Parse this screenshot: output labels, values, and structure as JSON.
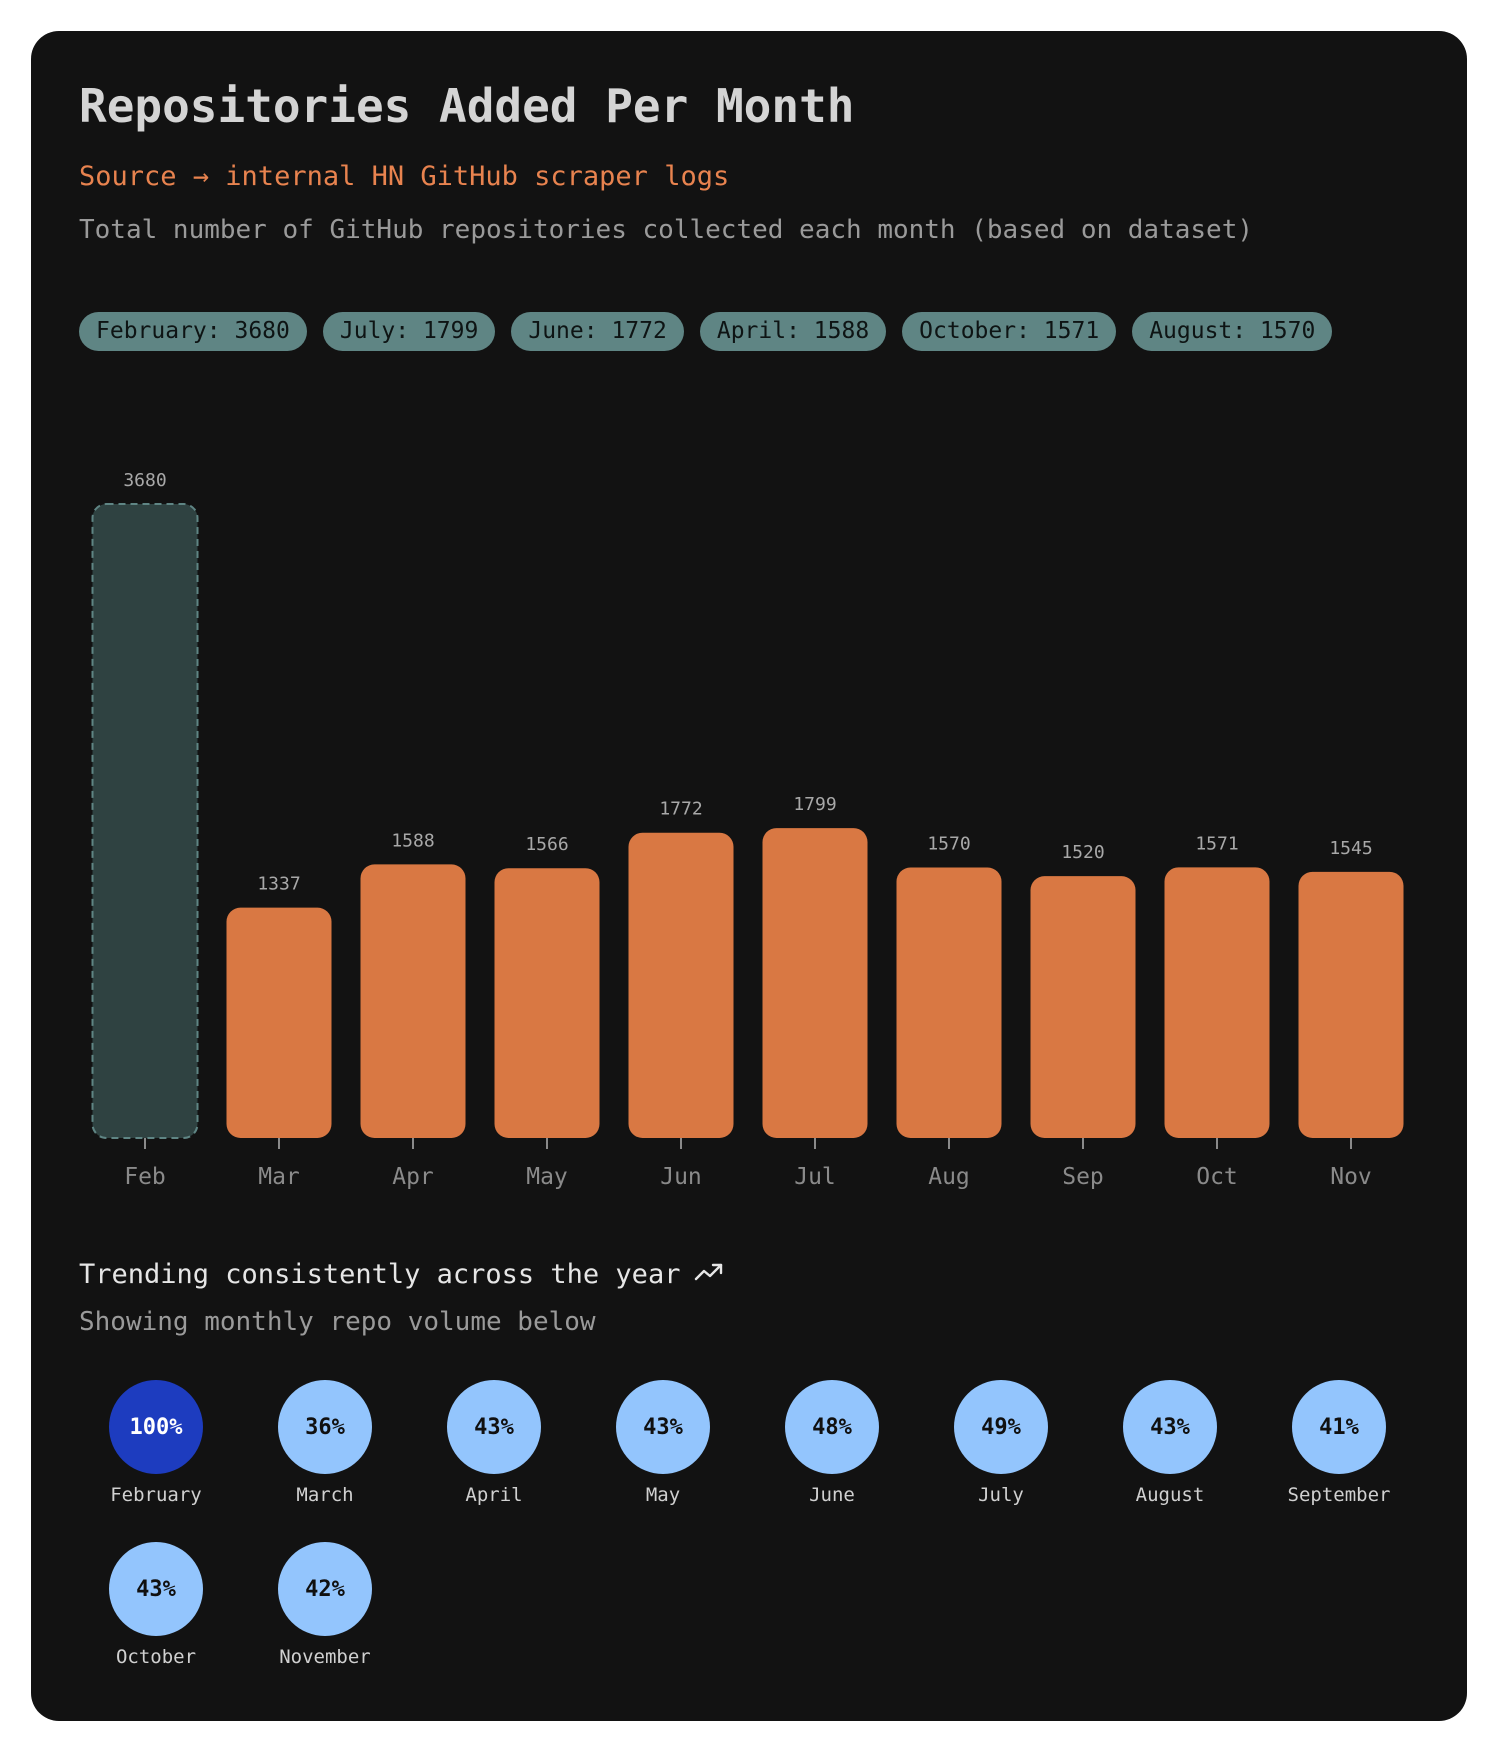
{
  "title": "Repositories Added Per Month",
  "source": "Source → internal HN GitHub scraper logs",
  "description": "Total number of GitHub repositories collected each month (based on dataset)",
  "pills": [
    "February: 3680",
    "July: 1799",
    "June: 1772",
    "April: 1588",
    "October: 1571",
    "August: 1570"
  ],
  "footer": {
    "trend_text": "Trending consistently across the year",
    "trend_icon": "trending-up-icon",
    "subtext": "Showing monthly repo volume below"
  },
  "colors": {
    "bar": "#d97843",
    "highlight_bar": "#2f4241",
    "highlight_border": "#5f8584",
    "top_circle": "#1d3cbf",
    "circle": "#93c5fd"
  },
  "chart_data": {
    "type": "bar",
    "categories": [
      "Feb",
      "Mar",
      "Apr",
      "May",
      "Jun",
      "Jul",
      "Aug",
      "Sep",
      "Oct",
      "Nov"
    ],
    "values": [
      3680,
      1337,
      1588,
      1566,
      1772,
      1799,
      1570,
      1520,
      1571,
      1545
    ],
    "highlighted": "Feb",
    "ylim": [
      0,
      3680
    ],
    "grid": false,
    "data_labels": true
  },
  "share_circles": [
    {
      "month": "February",
      "percent": "100%"
    },
    {
      "month": "March",
      "percent": "36%"
    },
    {
      "month": "April",
      "percent": "43%"
    },
    {
      "month": "May",
      "percent": "43%"
    },
    {
      "month": "June",
      "percent": "48%"
    },
    {
      "month": "July",
      "percent": "49%"
    },
    {
      "month": "August",
      "percent": "43%"
    },
    {
      "month": "September",
      "percent": "41%"
    },
    {
      "month": "October",
      "percent": "43%"
    },
    {
      "month": "November",
      "percent": "42%"
    }
  ]
}
